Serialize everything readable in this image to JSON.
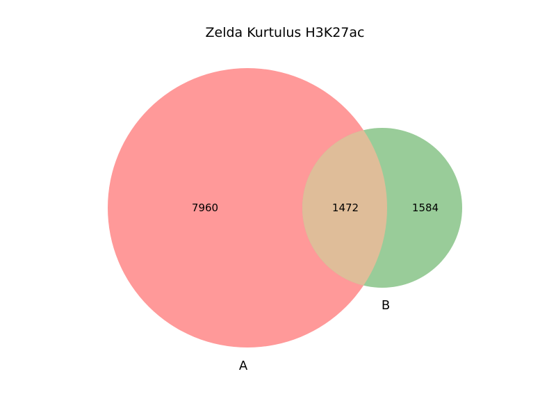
{
  "chart_data": {
    "type": "venn",
    "title": "Zelda Kurtulus H3K27ac",
    "sets": [
      {
        "name": "A",
        "color": "#ff9999"
      },
      {
        "name": "B",
        "color": "#99cc99"
      }
    ],
    "regions": {
      "A_only": 7960,
      "intersection": 1472,
      "B_only": 1584
    },
    "intersection_color": "#dfbd99",
    "grid": false,
    "legend": "none"
  }
}
